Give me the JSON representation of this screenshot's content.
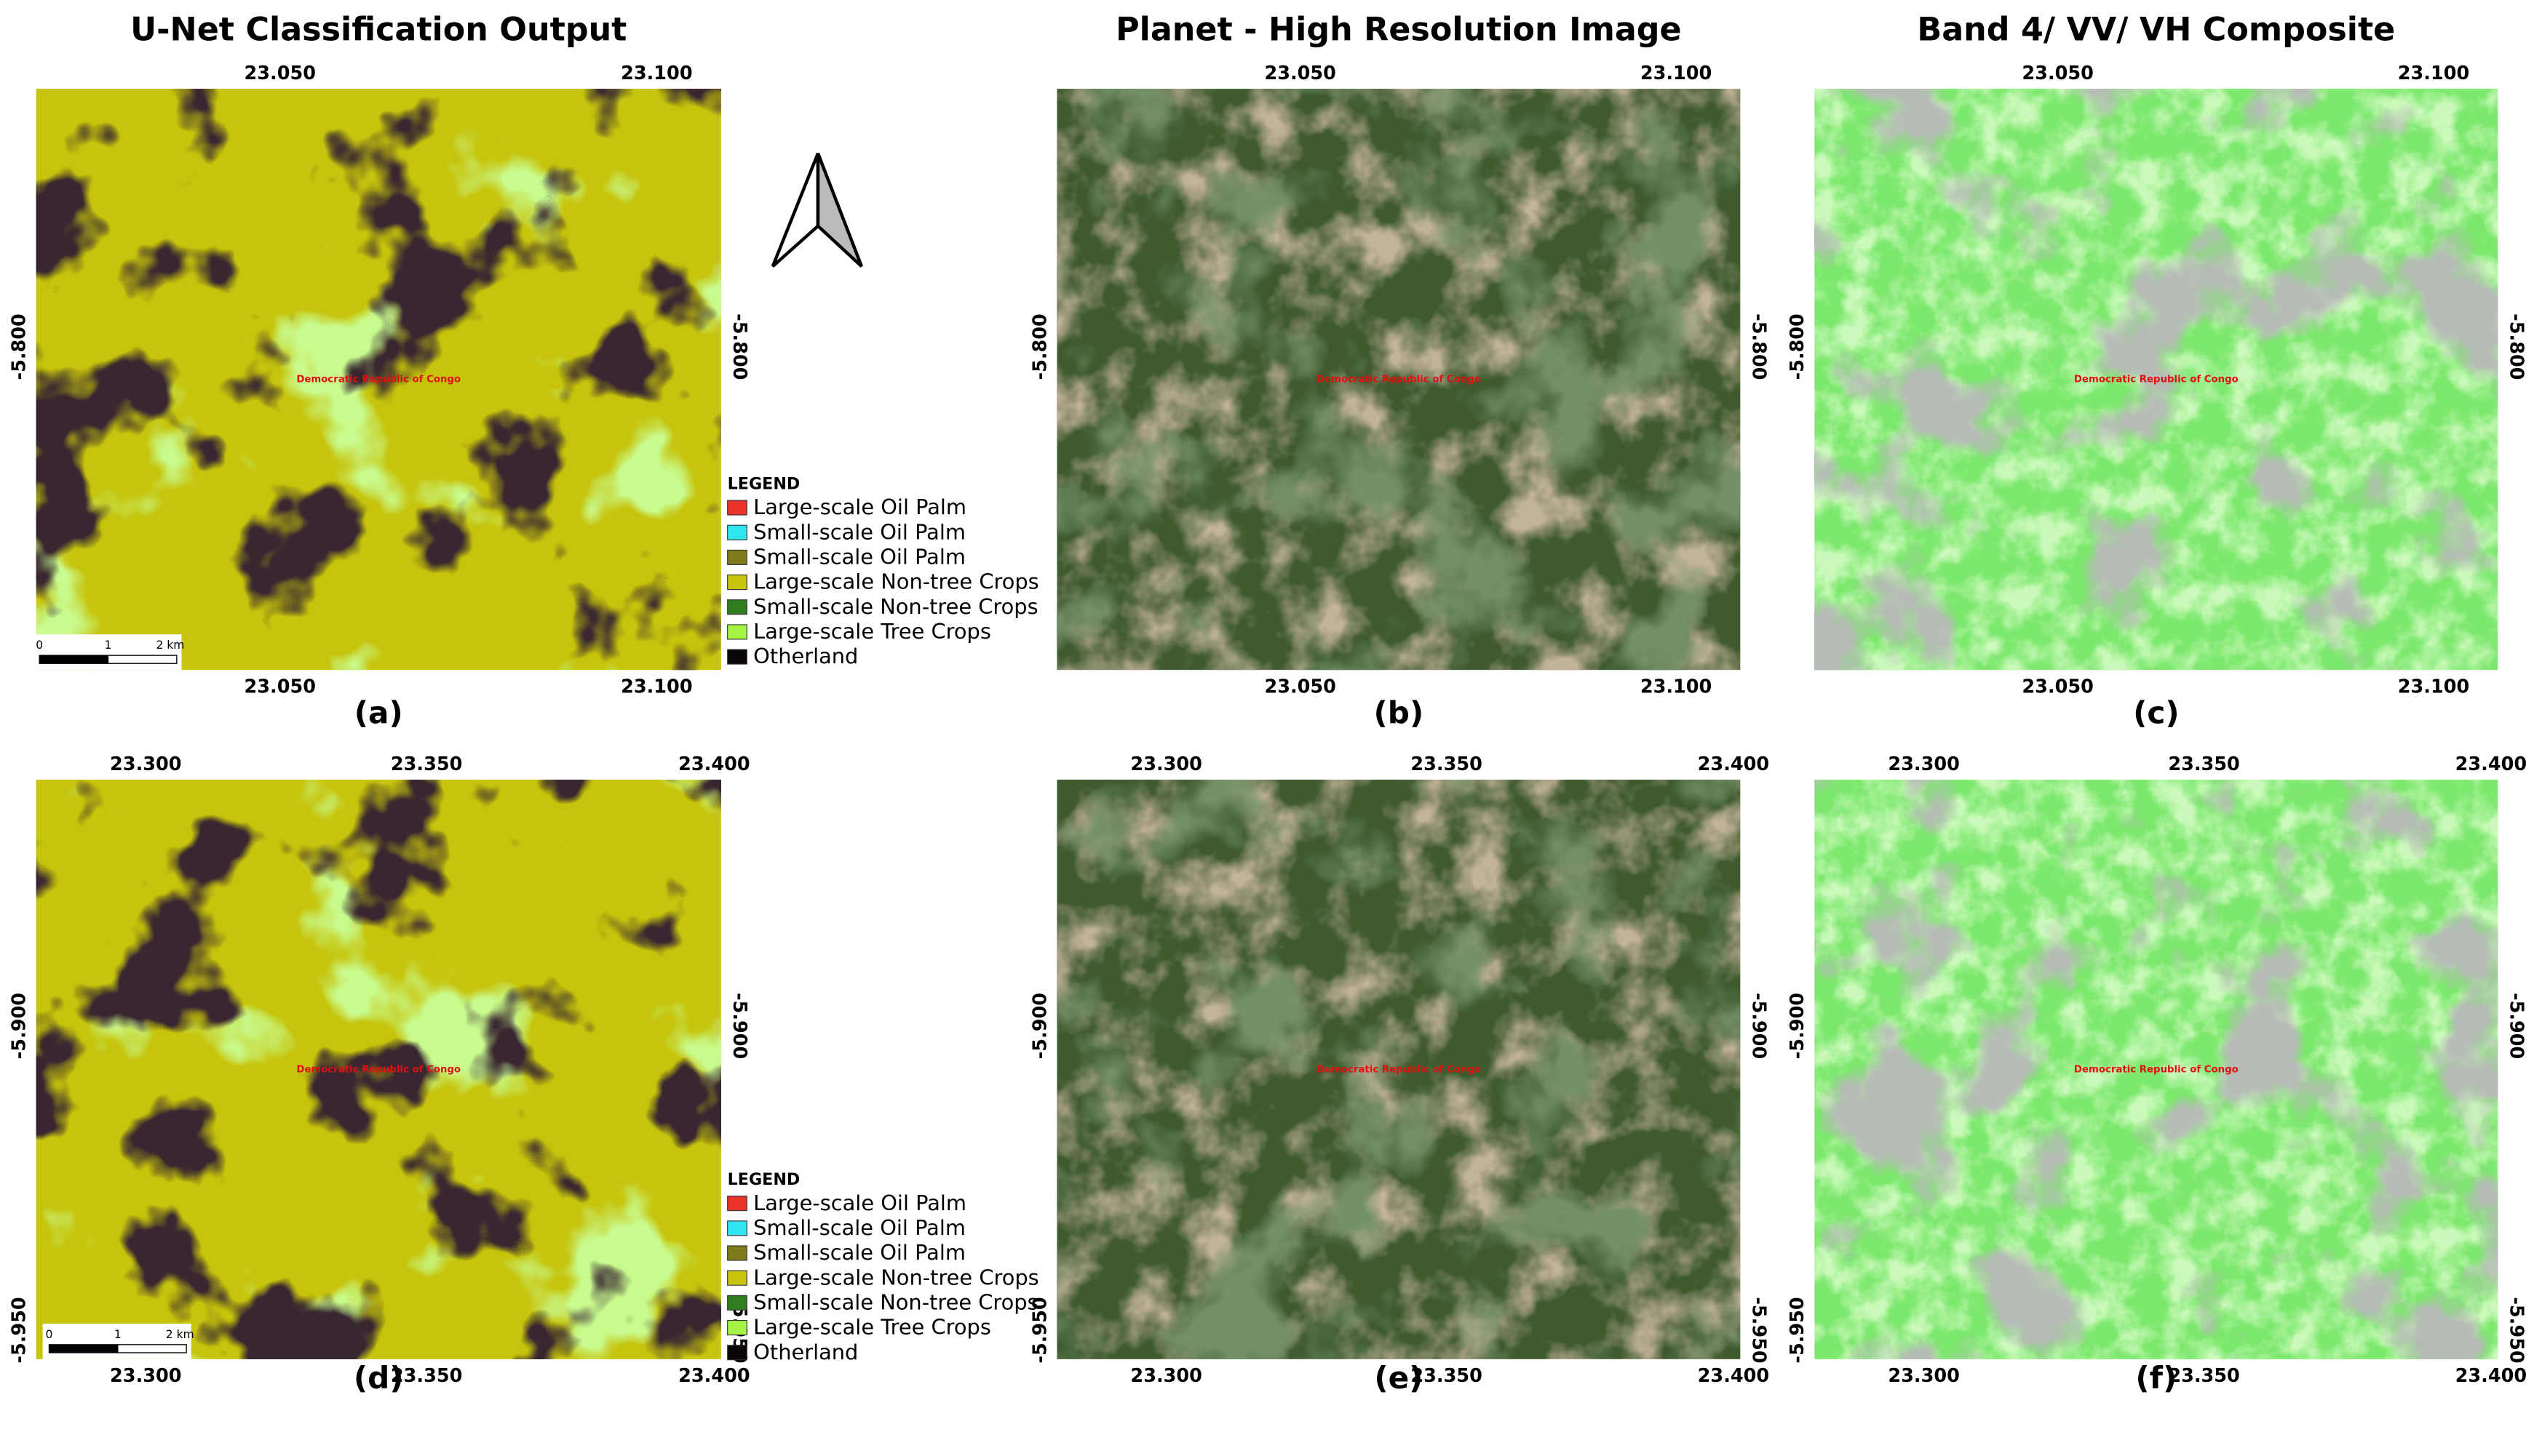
{
  "columns": [
    "U-Net Classification Output",
    "Planet - High Resolution Image",
    "Band 4/ VV/ VH Composite"
  ],
  "rows": [
    {
      "x_ticks": [
        "23.050",
        "23.100"
      ],
      "y_ticks": [
        "-5.800"
      ]
    },
    {
      "x_ticks": [
        "23.300",
        "23.350",
        "23.400"
      ],
      "y_ticks": [
        "-5.900",
        "-5.950"
      ]
    }
  ],
  "panel_labels": [
    "(a)",
    "(b)",
    "(c)",
    "(d)",
    "(e)",
    "(f)"
  ],
  "country": "Democratic Republic of Congo",
  "scale_bar": [
    "0",
    "1",
    "2 km"
  ],
  "legend": {
    "title": "LEGEND",
    "items": [
      {
        "name": "Large-scale Oil Palm",
        "color": "#e8322a"
      },
      {
        "name": "Small-scale Oil Palm",
        "color": "#30e6f0"
      },
      {
        "name": "Small-scale Oil Palm",
        "color": "#7f7a1c"
      },
      {
        "name": "Large-scale Non-tree Crops",
        "color": "#c6c40c"
      },
      {
        "name": "Small-scale Non-tree Crops",
        "color": "#2f7d1e"
      },
      {
        "name": "Large-scale Tree Crops",
        "color": "#a6f545"
      },
      {
        "name": "Otherland",
        "color": "#0a0508"
      }
    ]
  }
}
